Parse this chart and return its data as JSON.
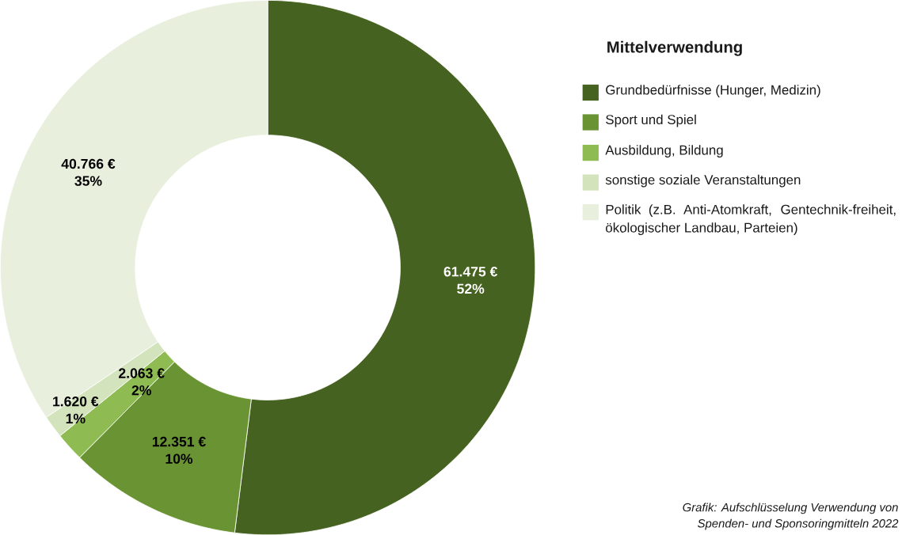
{
  "chart_data": {
    "type": "donut",
    "legend_title": "Mittelverwendung",
    "legend": "right",
    "categories": [
      "Grundbedürfnisse (Hunger, Medizin)",
      "Sport und Spiel",
      "Ausbildung, Bildung",
      "sonstige soziale Veranstaltungen",
      "Politik (z.B. Anti-Atomkraft, Gentechnik-freiheit, ökologischer Landbau, Parteien)"
    ],
    "values": [
      61475,
      12351,
      2063,
      1620,
      40766
    ],
    "colors": [
      "#466220",
      "#6a9433",
      "#8fbc52",
      "#d3e4bd",
      "#e8f0dd"
    ],
    "value_labels": [
      "61.475 €",
      "12.351 €",
      "2.063 €",
      "1.620 €",
      "40.766 €"
    ],
    "annotations": [
      "52%",
      "10%",
      "2%",
      "1%",
      "35%",
      "Grafik: Aufschlüsselung Verwendung von",
      "Spenden- und Sponsoringmitteln 2022"
    ]
  }
}
